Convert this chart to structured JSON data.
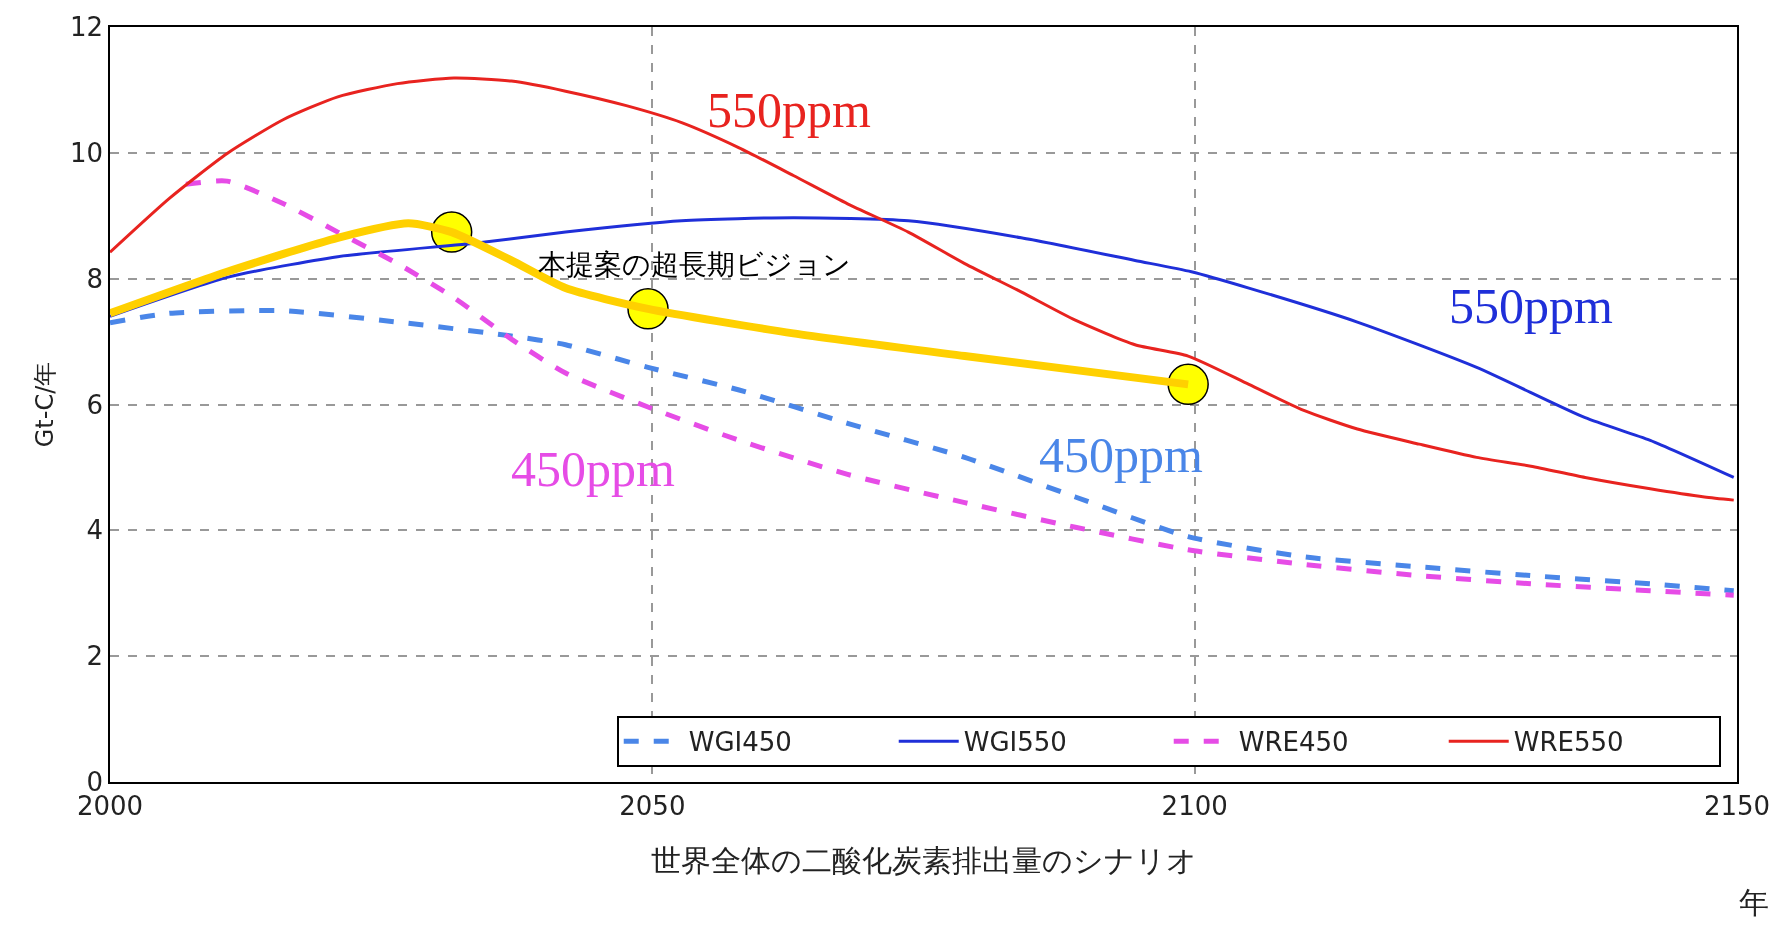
{
  "chart_data": {
    "type": "line",
    "xlabel": "世界全体の二酸化炭素排出量のシナリオ",
    "ylabel": "Gt-C/年",
    "xlim": [
      2000,
      2150
    ],
    "xticks": [
      2000,
      2050,
      2100,
      2150
    ],
    "ylim": [
      0,
      12
    ],
    "yticks": [
      0,
      2,
      4,
      6,
      8,
      10,
      12
    ],
    "grid": true,
    "legend": "bottom right",
    "marker": "none",
    "series": [
      {
        "name": "WGI450",
        "color": "#4a86e8",
        "line_style": "dashed",
        "x": [
          2000,
          2005.5,
          2016,
          2026.5,
          2037,
          2042,
          2049.6,
          2058,
          2068,
          2078.8,
          2089,
          2099.4,
          2110,
          2120.7,
          2131,
          2142,
          2149.7
        ],
        "values": [
          7.3,
          7.45,
          7.49,
          7.31,
          7.09,
          6.95,
          6.59,
          6.23,
          5.7,
          5.16,
          4.53,
          3.9,
          3.58,
          3.42,
          3.28,
          3.15,
          3.04
        ]
      },
      {
        "name": "WGI550",
        "color": "#1f2fd9",
        "line_style": "solid",
        "x": [
          2000,
          2010.8,
          2021,
          2034,
          2042,
          2052.7,
          2063,
          2073.6,
          2084,
          2094.5,
          2099.7,
          2105,
          2115,
          2126,
          2136,
          2142,
          2149.7
        ],
        "values": [
          7.4,
          8.02,
          8.35,
          8.57,
          8.74,
          8.92,
          8.97,
          8.92,
          8.65,
          8.29,
          8.11,
          7.85,
          7.31,
          6.59,
          5.79,
          5.43,
          4.84
        ]
      },
      {
        "name": "WRE450",
        "color": "#e64ce6",
        "line_style": "dashed",
        "x": [
          2007,
          2010.8,
          2016,
          2021,
          2026.5,
          2031.7,
          2037,
          2042,
          2049.6,
          2058,
          2068,
          2078.8,
          2089,
          2099.4,
          2110,
          2120.7,
          2131,
          2142,
          2149.7
        ],
        "values": [
          9.5,
          9.55,
          9.19,
          8.74,
          8.24,
          7.7,
          7.04,
          6.5,
          5.96,
          5.43,
          4.89,
          4.44,
          4.05,
          3.69,
          3.46,
          3.28,
          3.15,
          3.04,
          2.97
        ]
      },
      {
        "name": "WRE550",
        "color": "#e8231f",
        "line_style": "solid",
        "x": [
          2000,
          2005.5,
          2010.8,
          2016,
          2021,
          2026.5,
          2031.7,
          2037,
          2042,
          2047.6,
          2052.7,
          2058,
          2063,
          2068,
          2073.6,
          2078.8,
          2084,
          2089,
          2094.5,
          2099.4,
          2105,
          2110,
          2115,
          2120.7,
          2126,
          2131,
          2136,
          2142,
          2147,
          2149.7
        ],
        "values": [
          8.42,
          9.28,
          9.99,
          10.53,
          10.89,
          11.1,
          11.19,
          11.14,
          10.98,
          10.75,
          10.48,
          10.08,
          9.64,
          9.19,
          8.74,
          8.24,
          7.79,
          7.34,
          6.95,
          6.77,
          6.32,
          5.91,
          5.61,
          5.37,
          5.16,
          5.02,
          4.84,
          4.66,
          4.53,
          4.48
        ]
      },
      {
        "color": "#ffd000",
        "line_style": "solid",
        "x": [
          2000,
          2010.8,
          2021,
          2027.5,
          2031.5,
          2037,
          2042,
          2049.6,
          2063,
          2078.8,
          2099.4
        ],
        "values": [
          7.45,
          8.11,
          8.65,
          8.88,
          8.74,
          8.29,
          7.85,
          7.52,
          7.13,
          6.77,
          6.32
        ]
      },
      {
        "type": "scatter",
        "marker": "circle",
        "color": "#ffff00",
        "x": [
          2031.5,
          2049.6,
          2099.4
        ],
        "values": [
          8.74,
          7.52,
          6.32
        ]
      }
    ],
    "annotations": [
      "本提案の超長期ビジョン",
      "550ppm",
      "550ppm",
      "450ppm",
      "450ppm",
      "年"
    ]
  }
}
